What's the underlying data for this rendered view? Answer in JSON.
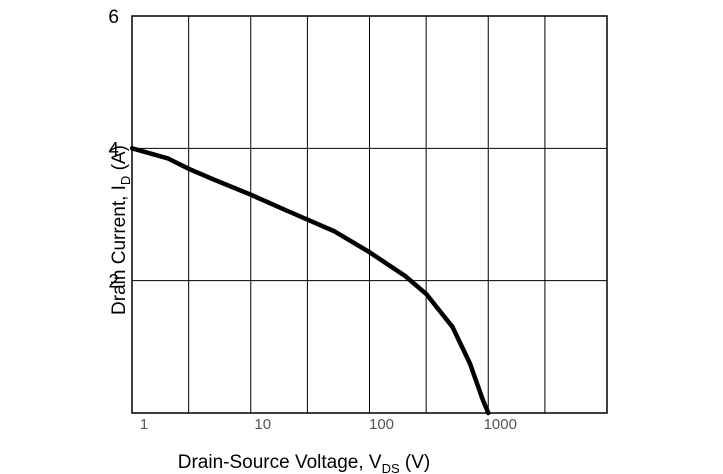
{
  "chart_data": {
    "type": "line",
    "xscale": "log",
    "xlim": [
      1,
      10000
    ],
    "ylim": [
      0,
      6
    ],
    "grid": true,
    "xlabel": "Drain-Source Voltage, V",
    "xlabel_sub": "DS",
    "xlabel_unit": " (V)",
    "ylabel": "Drain Current, I",
    "ylabel_sub": "D",
    "ylabel_unit": " (A)",
    "yticks": [
      {
        "value": 2,
        "label": "2"
      },
      {
        "value": 4,
        "label": "4"
      },
      {
        "value": 6,
        "label": "6"
      }
    ],
    "xticks": [
      {
        "value": 1,
        "label": "1"
      },
      {
        "value": 10,
        "label": "10"
      },
      {
        "value": 100,
        "label": "100"
      },
      {
        "value": 1000,
        "label": "1000"
      }
    ],
    "xgrid": [
      1,
      3,
      10,
      30,
      100,
      300,
      1000,
      3000,
      10000
    ],
    "series": [
      {
        "x": [
          1,
          2,
          3,
          5,
          10,
          20,
          50,
          100,
          200,
          300,
          500,
          700,
          900,
          1000
        ],
        "y": [
          4.0,
          3.85,
          3.69,
          3.52,
          3.3,
          3.06,
          2.75,
          2.43,
          2.07,
          1.8,
          1.3,
          0.75,
          0.2,
          0.0
        ]
      }
    ]
  }
}
